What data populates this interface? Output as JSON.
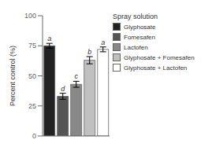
{
  "chart_data": {
    "type": "bar",
    "categories": [
      "Glyphosate",
      "Fomesafen",
      "Lactofen",
      "Glyphosate + Fomesafen",
      "Glyphosate + Lactofen"
    ],
    "values": [
      75,
      33,
      43,
      63,
      72
    ],
    "errors": [
      2.0,
      2.5,
      2.5,
      3.0,
      2.0
    ],
    "annotations": [
      "a",
      "d",
      "c",
      "b",
      "a"
    ],
    "colors": [
      "#222222",
      "#555555",
      "#888888",
      "#c0c0c0",
      "#ffffff"
    ],
    "ylabel": "Percent control (%)",
    "ylim": [
      0,
      100
    ],
    "yticks": [
      0,
      25,
      50,
      75,
      100
    ],
    "legend_title": "Spray solution",
    "legend": "right",
    "grid": false,
    "tick_labels": "y"
  }
}
